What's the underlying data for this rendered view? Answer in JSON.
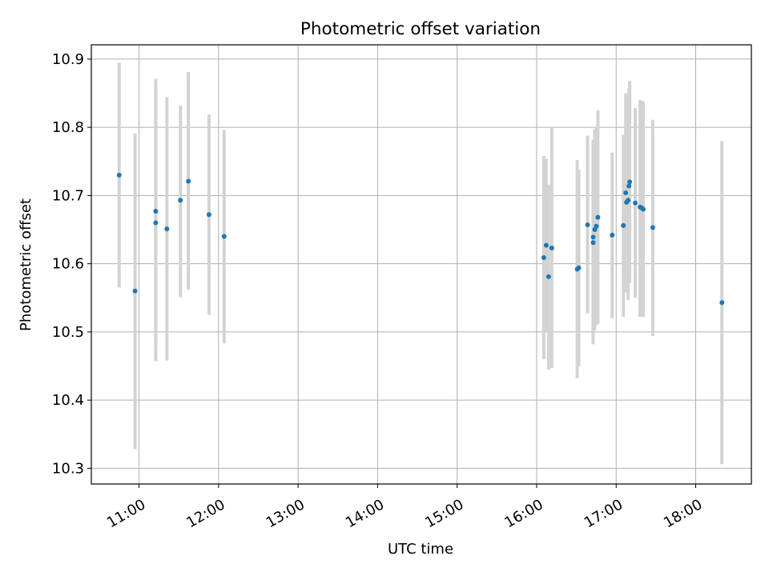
{
  "chart_data": {
    "type": "scatter",
    "title": "Photometric offset variation",
    "xlabel": "UTC time",
    "ylabel": "Photometric offset",
    "grid": true,
    "xlim_hours": [
      10.4,
      18.7
    ],
    "ylim": [
      10.277,
      10.921
    ],
    "x_ticks": [
      {
        "value": 11,
        "label": "11:00"
      },
      {
        "value": 12,
        "label": "12:00"
      },
      {
        "value": 13,
        "label": "13:00"
      },
      {
        "value": 14,
        "label": "14:00"
      },
      {
        "value": 15,
        "label": "15:00"
      },
      {
        "value": 16,
        "label": "16:00"
      },
      {
        "value": 17,
        "label": "17:00"
      },
      {
        "value": 18,
        "label": "18:00"
      }
    ],
    "y_ticks": [
      {
        "value": 10.3,
        "label": "10.3"
      },
      {
        "value": 10.4,
        "label": "10.4"
      },
      {
        "value": 10.5,
        "label": "10.5"
      },
      {
        "value": 10.6,
        "label": "10.6"
      },
      {
        "value": 10.7,
        "label": "10.7"
      },
      {
        "value": 10.8,
        "label": "10.8"
      },
      {
        "value": 10.9,
        "label": "10.9"
      }
    ],
    "marker_color": "#1f77b4",
    "errorbar_color": "#d3d3d3",
    "series": [
      {
        "name": "offset",
        "points": [
          {
            "x": 10.75,
            "y": 10.73,
            "lo": 10.565,
            "hi": 10.895
          },
          {
            "x": 10.95,
            "y": 10.56,
            "lo": 10.328,
            "hi": 10.791
          },
          {
            "x": 11.21,
            "y": 10.677,
            "lo": 10.483,
            "hi": 10.871
          },
          {
            "x": 11.21,
            "y": 10.66,
            "lo": 10.457,
            "hi": 10.862
          },
          {
            "x": 11.35,
            "y": 10.651,
            "lo": 10.458,
            "hi": 10.844
          },
          {
            "x": 11.52,
            "y": 10.693,
            "lo": 10.551,
            "hi": 10.832
          },
          {
            "x": 11.62,
            "y": 10.721,
            "lo": 10.562,
            "hi": 10.881
          },
          {
            "x": 11.88,
            "y": 10.672,
            "lo": 10.525,
            "hi": 10.819
          },
          {
            "x": 12.07,
            "y": 10.64,
            "lo": 10.483,
            "hi": 10.796
          },
          {
            "x": 16.09,
            "y": 10.609,
            "lo": 10.46,
            "hi": 10.758
          },
          {
            "x": 16.12,
            "y": 10.627,
            "lo": 10.5,
            "hi": 10.754
          },
          {
            "x": 16.15,
            "y": 10.581,
            "lo": 10.445,
            "hi": 10.716
          },
          {
            "x": 16.19,
            "y": 10.623,
            "lo": 10.447,
            "hi": 10.799
          },
          {
            "x": 16.51,
            "y": 10.592,
            "lo": 10.432,
            "hi": 10.752
          },
          {
            "x": 16.53,
            "y": 10.594,
            "lo": 10.45,
            "hi": 10.738
          },
          {
            "x": 16.64,
            "y": 10.657,
            "lo": 10.527,
            "hi": 10.788
          },
          {
            "x": 16.71,
            "y": 10.639,
            "lo": 10.495,
            "hi": 10.782
          },
          {
            "x": 16.71,
            "y": 10.631,
            "lo": 10.482,
            "hi": 10.781
          },
          {
            "x": 16.73,
            "y": 10.65,
            "lo": 10.502,
            "hi": 10.797
          },
          {
            "x": 16.75,
            "y": 10.655,
            "lo": 10.51,
            "hi": 10.8
          },
          {
            "x": 16.77,
            "y": 10.668,
            "lo": 10.512,
            "hi": 10.825
          },
          {
            "x": 16.95,
            "y": 10.642,
            "lo": 10.52,
            "hi": 10.763
          },
          {
            "x": 17.09,
            "y": 10.656,
            "lo": 10.522,
            "hi": 10.789
          },
          {
            "x": 17.12,
            "y": 10.704,
            "lo": 10.558,
            "hi": 10.85
          },
          {
            "x": 17.13,
            "y": 10.69,
            "lo": 10.56,
            "hi": 10.819
          },
          {
            "x": 17.15,
            "y": 10.693,
            "lo": 10.547,
            "hi": 10.839
          },
          {
            "x": 17.16,
            "y": 10.714,
            "lo": 10.572,
            "hi": 10.857
          },
          {
            "x": 17.17,
            "y": 10.72,
            "lo": 10.572,
            "hi": 10.868
          },
          {
            "x": 17.24,
            "y": 10.689,
            "lo": 10.55,
            "hi": 10.828
          },
          {
            "x": 17.3,
            "y": 10.683,
            "lo": 10.522,
            "hi": 10.84
          },
          {
            "x": 17.32,
            "y": 10.682,
            "lo": 10.522,
            "hi": 10.839
          },
          {
            "x": 17.34,
            "y": 10.68,
            "lo": 10.522,
            "hi": 10.838
          },
          {
            "x": 17.46,
            "y": 10.653,
            "lo": 10.494,
            "hi": 10.811
          },
          {
            "x": 18.33,
            "y": 10.543,
            "lo": 10.306,
            "hi": 10.78
          }
        ]
      }
    ]
  }
}
